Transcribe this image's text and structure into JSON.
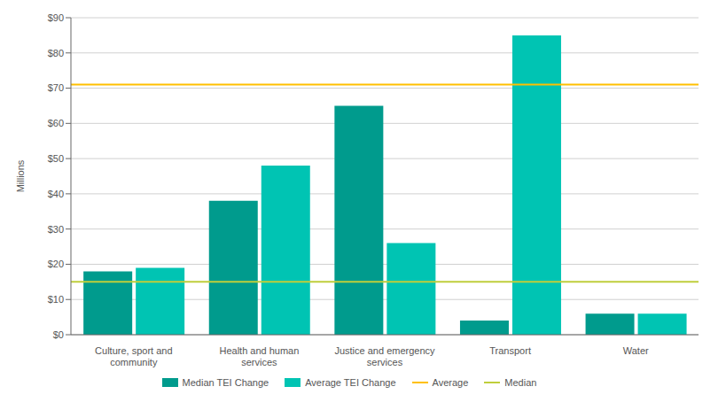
{
  "chart_data": {
    "type": "bar",
    "categories": [
      "Culture, sport and community",
      "Health and human services",
      "Justice and emergency\nservices",
      "Transport",
      "Water"
    ],
    "series": [
      {
        "name": "Median TEI Change",
        "color": "#009B8D",
        "values": [
          18,
          38,
          65,
          4,
          6
        ]
      },
      {
        "name": "Average TEI Change",
        "color": "#00C4B3",
        "values": [
          19,
          48,
          26,
          85,
          6
        ]
      }
    ],
    "reference_lines": [
      {
        "name": "Average",
        "value": 71,
        "color": "#FFC000"
      },
      {
        "name": "Median",
        "value": 15,
        "color": "#BFCE3B"
      }
    ],
    "ylabel": "Millions",
    "ylim": [
      0,
      90
    ],
    "yticks": [
      {
        "value": 0,
        "label": "$0"
      },
      {
        "value": 10,
        "label": "$10"
      },
      {
        "value": 20,
        "label": "$20"
      },
      {
        "value": 30,
        "label": "$30"
      },
      {
        "value": 40,
        "label": "$40"
      },
      {
        "value": 50,
        "label": "$50"
      },
      {
        "value": 60,
        "label": "$60"
      },
      {
        "value": 70,
        "label": "$70"
      },
      {
        "value": 80,
        "label": "$80"
      },
      {
        "value": 90,
        "label": "$90"
      }
    ],
    "grid": true,
    "legend": "bottom"
  }
}
